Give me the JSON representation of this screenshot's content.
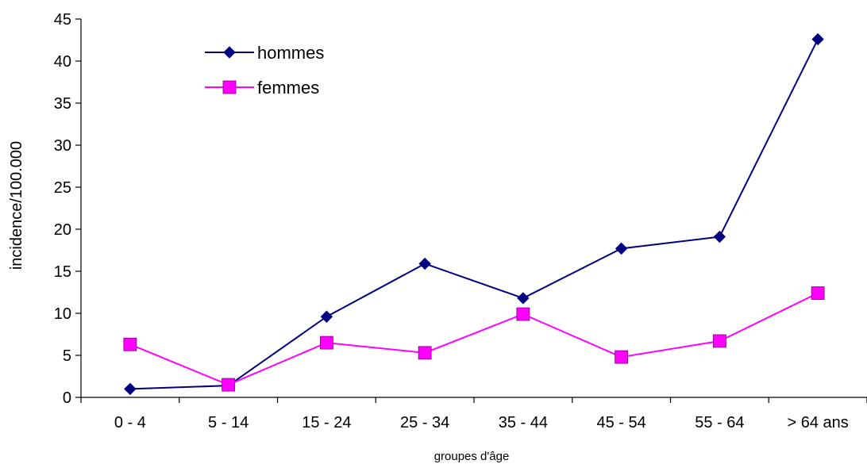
{
  "chart_data": {
    "type": "line",
    "xlabel": "groupes d'âge",
    "ylabel": "incidence/100.000",
    "categories": [
      "0 - 4",
      "5 - 14",
      "15 - 24",
      "25 - 34",
      "35 - 44",
      "45 - 54",
      "55 - 64",
      "> 64 ans"
    ],
    "ylim": [
      0,
      45
    ],
    "yticks": [
      0,
      5,
      10,
      15,
      20,
      25,
      30,
      35,
      40,
      45
    ],
    "grid": false,
    "legend_position": "top-left",
    "series": [
      {
        "name": "hommes",
        "color": "#000080",
        "marker": "diamond",
        "values": [
          1.0,
          1.4,
          9.6,
          15.9,
          11.8,
          17.7,
          19.1,
          42.6
        ]
      },
      {
        "name": "femmes",
        "color": "#ff00ff",
        "marker": "square",
        "values": [
          6.3,
          1.5,
          6.5,
          5.3,
          9.9,
          4.8,
          6.7,
          12.4
        ]
      }
    ]
  }
}
